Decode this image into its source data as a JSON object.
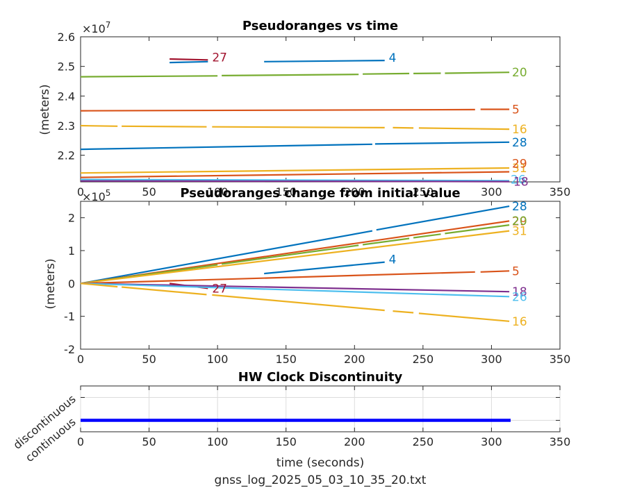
{
  "colors": {
    "c1": "#0072BD",
    "c2": "#D95319",
    "c3": "#EDB120",
    "c4": "#7E2F8E",
    "c5": "#77AC30",
    "c6": "#4DBEEE",
    "c7": "#A2142F",
    "clock": "#0000FF"
  },
  "footer": "gnss_log_2025_05_03_10_35_20.txt",
  "chart_data": [
    {
      "type": "line",
      "title": "Pseudoranges vs time",
      "xlabel": "",
      "ylabel": "(meters)",
      "exponent_label": "×10",
      "exponent_power": "7",
      "xlim": [
        0,
        350
      ],
      "ylim": [
        21.1,
        26.0
      ],
      "y_scale_note": "values in units of 1e6 m (axis ×10^7)",
      "x_ticks": [
        "0",
        "50",
        "100",
        "150",
        "200",
        "250",
        "300",
        "350"
      ],
      "y_ticks": [
        {
          "v": 22.0,
          "label": "2.2"
        },
        {
          "v": 23.0,
          "label": "2.3"
        },
        {
          "v": 24.0,
          "label": "2.4"
        },
        {
          "v": 25.0,
          "label": "2.5"
        },
        {
          "v": 26.0,
          "label": "2.6"
        }
      ],
      "series": [
        {
          "name": "27",
          "color": "c7",
          "segments": [
            [
              [
                65,
                25.25
              ],
              [
                93,
                25.22
              ]
            ]
          ]
        },
        {
          "name": "4",
          "color": "c1",
          "segments": [
            [
              [
                65,
                25.13
              ],
              [
                93,
                25.16
              ]
            ],
            [
              [
                134,
                25.16
              ],
              [
                222,
                25.2
              ]
            ]
          ]
        },
        {
          "name": "20",
          "color": "c5",
          "segments": [
            [
              [
                0,
                24.65
              ],
              [
                100,
                24.68
              ]
            ],
            [
              [
                103,
                24.69
              ],
              [
                203,
                24.73
              ]
            ],
            [
              [
                206,
                24.74
              ],
              [
                240,
                24.76
              ]
            ],
            [
              [
                243,
                24.76
              ],
              [
                263,
                24.77
              ]
            ],
            [
              [
                266,
                24.77
              ],
              [
                313,
                24.8
              ]
            ]
          ]
        },
        {
          "name": "5",
          "color": "c2",
          "segments": [
            [
              [
                0,
                23.5
              ],
              [
                288,
                23.54
              ]
            ],
            [
              [
                292,
                23.55
              ],
              [
                313,
                23.55
              ]
            ]
          ]
        },
        {
          "name": "16",
          "color": "c3",
          "segments": [
            [
              [
                0,
                23.0
              ],
              [
                27,
                22.98
              ]
            ],
            [
              [
                30,
                22.98
              ],
              [
                92,
                22.96
              ]
            ],
            [
              [
                96,
                22.96
              ],
              [
                222,
                22.93
              ]
            ],
            [
              [
                228,
                22.93
              ],
              [
                243,
                22.92
              ]
            ],
            [
              [
                247,
                22.92
              ],
              [
                313,
                22.88
              ]
            ]
          ]
        },
        {
          "name": "28",
          "color": "c1",
          "segments": [
            [
              [
                0,
                22.2
              ],
              [
                213,
                22.37
              ]
            ],
            [
              [
                215,
                22.38
              ],
              [
                313,
                22.44
              ]
            ]
          ]
        },
        {
          "name": "31",
          "color": "c3",
          "segments": [
            [
              [
                0,
                21.4
              ],
              [
                313,
                21.57
              ]
            ]
          ]
        },
        {
          "name": "29",
          "color": "c2",
          "segments": [
            [
              [
                0,
                21.25
              ],
              [
                313,
                21.44
              ]
            ]
          ]
        },
        {
          "name": "26",
          "color": "c6",
          "segments": [
            [
              [
                0,
                21.18
              ],
              [
                313,
                21.14
              ]
            ]
          ]
        },
        {
          "name": "18",
          "color": "c4",
          "segments": [
            [
              [
                0,
                21.13
              ],
              [
                313,
                21.11
              ]
            ]
          ]
        }
      ]
    },
    {
      "type": "line",
      "title": "Pseudoranges change from initial value",
      "xlabel": "",
      "ylabel": "(meters)",
      "exponent_label": "×10",
      "exponent_power": "5",
      "xlim": [
        0,
        350
      ],
      "ylim": [
        -2,
        2.5
      ],
      "x_ticks": [
        "0",
        "50",
        "100",
        "150",
        "200",
        "250",
        "300",
        "350"
      ],
      "y_ticks": [
        {
          "v": -2,
          "label": "-2"
        },
        {
          "v": -1,
          "label": "-1"
        },
        {
          "v": 0,
          "label": "0"
        },
        {
          "v": 1,
          "label": "1"
        },
        {
          "v": 2,
          "label": "2"
        }
      ],
      "series": [
        {
          "name": "28",
          "color": "c1",
          "segments": [
            [
              [
                0,
                0
              ],
              [
                213,
                1.6
              ]
            ],
            [
              [
                216,
                1.63
              ],
              [
                313,
                2.35
              ]
            ]
          ]
        },
        {
          "name": "29",
          "color": "c2",
          "segments": [
            [
              [
                0,
                0
              ],
              [
                313,
                1.9
              ]
            ]
          ]
        },
        {
          "name": "20",
          "color": "c5",
          "segments": [
            [
              [
                0,
                0
              ],
              [
                100,
                0.57
              ]
            ],
            [
              [
                103,
                0.59
              ],
              [
                203,
                1.16
              ]
            ],
            [
              [
                206,
                1.18
              ],
              [
                240,
                1.37
              ]
            ],
            [
              [
                243,
                1.39
              ],
              [
                263,
                1.5
              ]
            ],
            [
              [
                266,
                1.52
              ],
              [
                313,
                1.78
              ]
            ]
          ]
        },
        {
          "name": "31",
          "color": "c3",
          "segments": [
            [
              [
                0,
                0
              ],
              [
                313,
                1.6
              ]
            ]
          ]
        },
        {
          "name": "4",
          "color": "c1",
          "segments": [
            [
              [
                134,
                0.3
              ],
              [
                222,
                0.65
              ]
            ]
          ]
        },
        {
          "name": "5",
          "color": "c2",
          "segments": [
            [
              [
                0,
                0
              ],
              [
                288,
                0.35
              ]
            ],
            [
              [
                292,
                0.35
              ],
              [
                313,
                0.38
              ]
            ]
          ]
        },
        {
          "name": "27",
          "color": "c7",
          "segments": [
            [
              [
                65,
                0.0
              ],
              [
                93,
                -0.15
              ]
            ]
          ]
        },
        {
          "name": "18",
          "color": "c4",
          "segments": [
            [
              [
                0,
                0
              ],
              [
                313,
                -0.25
              ]
            ]
          ]
        },
        {
          "name": "26",
          "color": "c6",
          "segments": [
            [
              [
                0,
                0
              ],
              [
                313,
                -0.4
              ]
            ]
          ]
        },
        {
          "name": "16",
          "color": "c3",
          "segments": [
            [
              [
                0,
                0
              ],
              [
                27,
                -0.1
              ]
            ],
            [
              [
                30,
                -0.11
              ],
              [
                92,
                -0.34
              ]
            ],
            [
              [
                96,
                -0.35
              ],
              [
                222,
                -0.82
              ]
            ],
            [
              [
                228,
                -0.84
              ],
              [
                243,
                -0.89
              ]
            ],
            [
              [
                247,
                -0.91
              ],
              [
                313,
                -1.15
              ]
            ]
          ]
        }
      ]
    },
    {
      "type": "line",
      "title": "HW Clock Discontinuity",
      "xlabel": "time (seconds)",
      "ylabel": "",
      "xlim": [
        0,
        350
      ],
      "ylim": [
        -0.5,
        1.5
      ],
      "x_ticks": [
        "0",
        "50",
        "100",
        "150",
        "200",
        "250",
        "300",
        "350"
      ],
      "y_ticks": [
        {
          "v": 0,
          "label": "continuous"
        },
        {
          "v": 1,
          "label": "discontinuous"
        }
      ],
      "series": [
        {
          "name": "",
          "color": "clock",
          "segments": [
            [
              [
                0,
                0
              ],
              [
                314,
                0
              ]
            ]
          ]
        }
      ]
    }
  ]
}
